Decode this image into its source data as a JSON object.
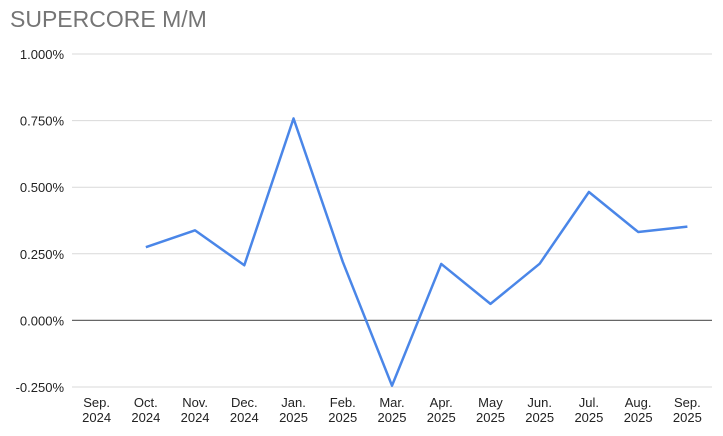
{
  "chart_data": {
    "type": "line",
    "title": "SUPERCORE M/M",
    "categories": [
      "Sep. 2024",
      "Oct. 2024",
      "Nov. 2024",
      "Dec. 2024",
      "Jan. 2025",
      "Feb. 2025",
      "Mar. 2025",
      "Apr. 2025",
      "May 2025",
      "Jun. 2025",
      "Jul. 2025",
      "Aug. 2025",
      "Sep. 2025"
    ],
    "series": [
      {
        "name": "Supercore M/M",
        "color": "#4a86e8",
        "values": [
          null,
          0.275,
          0.338,
          0.207,
          0.758,
          0.22,
          -0.245,
          0.212,
          0.062,
          0.213,
          0.482,
          0.332,
          0.352
        ]
      }
    ],
    "ylim": [
      -0.25,
      1.0
    ],
    "yticks": [
      {
        "value": -0.25,
        "label": "-0.250%"
      },
      {
        "value": 0,
        "label": "0.000%"
      },
      {
        "value": 0.25,
        "label": "0.250%"
      },
      {
        "value": 0.5,
        "label": "0.500%"
      },
      {
        "value": 0.75,
        "label": "0.750%"
      },
      {
        "value": 1.0,
        "label": "1.000%"
      }
    ],
    "grid": true
  }
}
